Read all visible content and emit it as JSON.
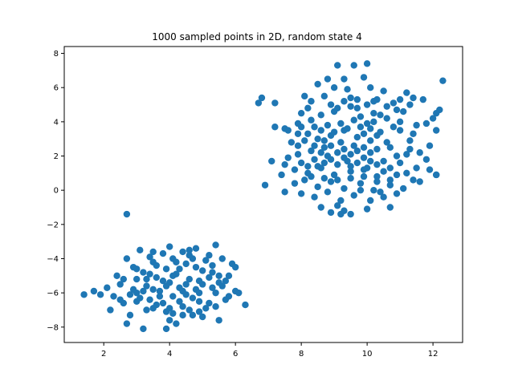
{
  "chart_data": {
    "type": "scatter",
    "title": "1000 sampled points in 2D, random state 4",
    "xlabel": "",
    "ylabel": "",
    "xlim": [
      0.8,
      12.9
    ],
    "ylim": [
      -8.9,
      8.4
    ],
    "xticks": [
      2,
      4,
      6,
      8,
      10,
      12
    ],
    "yticks": [
      -8,
      -6,
      -4,
      -2,
      0,
      2,
      4,
      6,
      8
    ],
    "xtick_labels": [
      "2",
      "4",
      "6",
      "8",
      "10",
      "12"
    ],
    "ytick_labels": [
      "−8",
      "−6",
      "−4",
      "−2",
      "0",
      "2",
      "4",
      "6",
      "8"
    ],
    "grid": false,
    "legend": "none",
    "marker_color": "#1f77b4",
    "series": [
      {
        "points": [
          [
            9.1,
            7.3
          ],
          [
            9.6,
            7.3
          ],
          [
            10.0,
            7.4
          ],
          [
            8.8,
            6.5
          ],
          [
            9.3,
            6.5
          ],
          [
            9.9,
            6.6
          ],
          [
            8.5,
            6.2
          ],
          [
            9.0,
            6.0
          ],
          [
            9.4,
            5.9
          ],
          [
            10.1,
            6.0
          ],
          [
            10.5,
            5.8
          ],
          [
            11.2,
            5.7
          ],
          [
            12.3,
            6.4
          ],
          [
            11.4,
            5.4
          ],
          [
            11.7,
            5.3
          ],
          [
            6.7,
            5.1
          ],
          [
            6.8,
            5.4
          ],
          [
            7.2,
            5.1
          ],
          [
            8.1,
            5.5
          ],
          [
            8.3,
            5.2
          ],
          [
            8.7,
            5.5
          ],
          [
            9.5,
            5.4
          ],
          [
            10.3,
            5.3
          ],
          [
            10.8,
            5.1
          ],
          [
            7.2,
            3.7
          ],
          [
            7.5,
            3.6
          ],
          [
            7.9,
            3.9
          ],
          [
            8.3,
            4.1
          ],
          [
            8.6,
            4.4
          ],
          [
            9.0,
            4.6
          ],
          [
            9.7,
            4.8
          ],
          [
            10.2,
            4.5
          ],
          [
            10.6,
            4.2
          ],
          [
            11.1,
            4.6
          ],
          [
            12.2,
            4.7
          ],
          [
            12.1,
            4.5
          ],
          [
            8.2,
            3.3
          ],
          [
            8.5,
            3.0
          ],
          [
            8.9,
            3.2
          ],
          [
            9.3,
            3.5
          ],
          [
            9.8,
            3.7
          ],
          [
            10.4,
            3.4
          ],
          [
            11.0,
            3.5
          ],
          [
            11.4,
            3.3
          ],
          [
            12.1,
            3.5
          ],
          [
            7.9,
            2.6
          ],
          [
            8.3,
            2.3
          ],
          [
            8.7,
            2.5
          ],
          [
            9.2,
            2.8
          ],
          [
            9.6,
            2.6
          ],
          [
            10.1,
            2.9
          ],
          [
            10.7,
            2.5
          ],
          [
            11.3,
            2.4
          ],
          [
            7.6,
            1.9
          ],
          [
            8.0,
            1.6
          ],
          [
            8.4,
            1.8
          ],
          [
            8.8,
            2.0
          ],
          [
            9.4,
            1.7
          ],
          [
            9.9,
            1.9
          ],
          [
            10.5,
            1.7
          ],
          [
            11.0,
            1.6
          ],
          [
            11.5,
            1.3
          ],
          [
            11.9,
            1.2
          ],
          [
            12.1,
            0.9
          ],
          [
            7.5,
            1.5
          ],
          [
            7.8,
            1.2
          ],
          [
            8.2,
            1.0
          ],
          [
            8.6,
            1.3
          ],
          [
            9.0,
            0.9
          ],
          [
            9.5,
            1.1
          ],
          [
            10.0,
            1.3
          ],
          [
            10.3,
            0.8
          ],
          [
            10.9,
            0.9
          ],
          [
            11.4,
            0.6
          ],
          [
            12.1,
            0.9
          ],
          [
            7.1,
            1.7
          ],
          [
            7.4,
            0.9
          ],
          [
            7.8,
            0.4
          ],
          [
            8.1,
            0.6
          ],
          [
            8.5,
            0.2
          ],
          [
            8.9,
            0.5
          ],
          [
            9.3,
            0.1
          ],
          [
            9.8,
            0.4
          ],
          [
            10.2,
            0.0
          ],
          [
            10.7,
            0.3
          ],
          [
            11.1,
            0.1
          ],
          [
            11.6,
            0.5
          ],
          [
            6.9,
            0.3
          ],
          [
            7.5,
            -0.1
          ],
          [
            8.0,
            -0.2
          ],
          [
            8.4,
            -0.4
          ],
          [
            8.8,
            -0.1
          ],
          [
            9.2,
            -0.6
          ],
          [
            9.6,
            -0.3
          ],
          [
            10.1,
            -0.6
          ],
          [
            10.5,
            -0.4
          ],
          [
            10.9,
            -0.2
          ],
          [
            8.6,
            -1.0
          ],
          [
            9.1,
            -0.9
          ],
          [
            9.3,
            -1.2
          ],
          [
            9.5,
            -1.4
          ],
          [
            10.0,
            -1.1
          ],
          [
            10.7,
            -1.0
          ],
          [
            9.2,
            -1.4
          ],
          [
            8.9,
            -1.3
          ],
          [
            8.4,
            3.7
          ],
          [
            8.6,
            3.5
          ],
          [
            8.8,
            3.8
          ],
          [
            9.0,
            3.4
          ],
          [
            9.2,
            3.9
          ],
          [
            9.4,
            3.6
          ],
          [
            9.6,
            4.1
          ],
          [
            9.8,
            4.3
          ],
          [
            10.0,
            3.9
          ],
          [
            10.2,
            4.0
          ],
          [
            10.4,
            4.4
          ],
          [
            9.7,
            3.1
          ],
          [
            9.9,
            3.3
          ],
          [
            10.1,
            3.6
          ],
          [
            10.3,
            3.2
          ],
          [
            8.7,
            2.9
          ],
          [
            8.9,
            2.6
          ],
          [
            9.1,
            2.2
          ],
          [
            9.3,
            2.4
          ],
          [
            9.5,
            2.1
          ],
          [
            9.7,
            2.3
          ],
          [
            9.9,
            2.5
          ],
          [
            10.1,
            2.2
          ],
          [
            10.3,
            2.4
          ],
          [
            8.5,
            1.4
          ],
          [
            8.7,
            1.6
          ],
          [
            8.9,
            1.8
          ],
          [
            9.1,
            1.5
          ],
          [
            9.3,
            1.9
          ],
          [
            9.5,
            1.4
          ],
          [
            9.7,
            1.6
          ],
          [
            9.9,
            1.2
          ],
          [
            10.1,
            1.7
          ],
          [
            10.3,
            1.5
          ],
          [
            10.5,
            1.1
          ],
          [
            8.3,
            0.8
          ],
          [
            8.7,
            0.7
          ],
          [
            9.1,
            0.6
          ],
          [
            9.5,
            0.7
          ],
          [
            9.9,
            0.8
          ],
          [
            10.3,
            0.5
          ],
          [
            10.7,
            0.6
          ],
          [
            8.9,
            5.0
          ],
          [
            9.1,
            4.8
          ],
          [
            9.3,
            5.2
          ],
          [
            9.5,
            4.9
          ],
          [
            9.7,
            5.3
          ],
          [
            10.0,
            5.0
          ],
          [
            10.2,
            5.2
          ],
          [
            10.6,
            4.9
          ],
          [
            8.2,
            4.8
          ],
          [
            8.0,
            4.5
          ],
          [
            7.9,
            3.3
          ],
          [
            11.3,
            2.9
          ],
          [
            11.6,
            2.2
          ],
          [
            11.8,
            1.8
          ],
          [
            11.2,
            2.1
          ],
          [
            11.5,
            3.8
          ],
          [
            11.0,
            4.0
          ],
          [
            10.8,
            3.7
          ],
          [
            10.6,
            2.8
          ],
          [
            10.9,
            2.0
          ],
          [
            10.7,
            1.3
          ],
          [
            11.2,
            1.0
          ],
          [
            7.7,
            2.8
          ],
          [
            7.9,
            2.1
          ],
          [
            8.1,
            2.9
          ],
          [
            8.2,
            1.4
          ],
          [
            8.4,
            2.6
          ],
          [
            8.6,
            2.2
          ],
          [
            9.8,
            0.0
          ],
          [
            10.4,
            -0.1
          ],
          [
            11.3,
            5.0
          ],
          [
            11.0,
            5.3
          ],
          [
            10.9,
            4.7
          ],
          [
            8.0,
            3.7
          ],
          [
            7.6,
            3.5
          ],
          [
            12.0,
            4.2
          ],
          [
            11.8,
            3.9
          ],
          [
            11.9,
            2.6
          ],
          [
            2.7,
            -1.4
          ],
          [
            1.4,
            -6.1
          ],
          [
            1.7,
            -5.9
          ],
          [
            1.9,
            -6.1
          ],
          [
            2.1,
            -5.7
          ],
          [
            2.3,
            -6.2
          ],
          [
            2.2,
            -7.0
          ],
          [
            2.4,
            -5.0
          ],
          [
            2.5,
            -5.5
          ],
          [
            2.6,
            -6.6
          ],
          [
            2.7,
            -4.0
          ],
          [
            2.7,
            -7.8
          ],
          [
            2.8,
            -7.3
          ],
          [
            2.9,
            -4.5
          ],
          [
            3.0,
            -5.2
          ],
          [
            3.0,
            -6.0
          ],
          [
            3.1,
            -3.5
          ],
          [
            3.2,
            -8.1
          ],
          [
            3.2,
            -4.8
          ],
          [
            3.3,
            -5.6
          ],
          [
            3.4,
            -6.4
          ],
          [
            3.4,
            -3.9
          ],
          [
            3.5,
            -4.2
          ],
          [
            3.5,
            -6.9
          ],
          [
            3.6,
            -5.1
          ],
          [
            3.7,
            -5.9
          ],
          [
            3.8,
            -3.7
          ],
          [
            3.8,
            -6.6
          ],
          [
            3.9,
            -4.6
          ],
          [
            3.9,
            -7.1
          ],
          [
            4.0,
            -3.3
          ],
          [
            4.0,
            -5.4
          ],
          [
            4.1,
            -6.2
          ],
          [
            4.1,
            -4.0
          ],
          [
            4.2,
            -7.8
          ],
          [
            4.2,
            -4.9
          ],
          [
            4.3,
            -5.7
          ],
          [
            4.4,
            -6.8
          ],
          [
            4.4,
            -3.6
          ],
          [
            4.5,
            -4.3
          ],
          [
            4.5,
            -6.1
          ],
          [
            4.6,
            -5.2
          ],
          [
            4.7,
            -7.3
          ],
          [
            4.7,
            -4.0
          ],
          [
            4.8,
            -5.8
          ],
          [
            4.8,
            -3.4
          ],
          [
            4.9,
            -6.5
          ],
          [
            5.0,
            -4.7
          ],
          [
            5.0,
            -5.5
          ],
          [
            5.1,
            -6.9
          ],
          [
            5.2,
            -3.8
          ],
          [
            5.2,
            -5.1
          ],
          [
            5.3,
            -4.4
          ],
          [
            5.4,
            -3.2
          ],
          [
            5.4,
            -6.0
          ],
          [
            5.5,
            -7.6
          ],
          [
            5.5,
            -5.4
          ],
          [
            5.6,
            -4.0
          ],
          [
            5.7,
            -6.4
          ],
          [
            5.8,
            -5.0
          ],
          [
            5.9,
            -4.3
          ],
          [
            6.0,
            -5.9
          ],
          [
            6.0,
            -4.5
          ],
          [
            6.3,
            -6.7
          ],
          [
            3.9,
            -8.1
          ],
          [
            4.0,
            -7.6
          ],
          [
            4.4,
            -7.3
          ],
          [
            4.9,
            -7.1
          ],
          [
            5.4,
            -6.8
          ],
          [
            3.3,
            -7.0
          ],
          [
            3.0,
            -6.5
          ],
          [
            2.8,
            -6.1
          ],
          [
            2.6,
            -5.2
          ],
          [
            3.6,
            -4.4
          ],
          [
            4.3,
            -4.6
          ],
          [
            4.6,
            -3.8
          ],
          [
            5.1,
            -4.1
          ],
          [
            5.6,
            -5.6
          ],
          [
            5.8,
            -6.2
          ],
          [
            3.5,
            -5.8
          ],
          [
            3.8,
            -5.3
          ],
          [
            4.1,
            -5.0
          ],
          [
            4.3,
            -6.5
          ],
          [
            4.7,
            -6.3
          ],
          [
            5.2,
            -6.6
          ],
          [
            3.2,
            -5.9
          ],
          [
            3.4,
            -4.9
          ],
          [
            4.0,
            -6.9
          ],
          [
            4.5,
            -5.5
          ],
          [
            4.9,
            -5.3
          ],
          [
            5.3,
            -5.7
          ],
          [
            3.7,
            -6.2
          ],
          [
            4.2,
            -4.2
          ],
          [
            4.8,
            -4.5
          ],
          [
            3.1,
            -6.3
          ],
          [
            2.9,
            -5.8
          ],
          [
            3.5,
            -3.6
          ],
          [
            4.6,
            -3.5
          ],
          [
            5.5,
            -5.0
          ],
          [
            6.1,
            -6.0
          ],
          [
            2.5,
            -6.4
          ],
          [
            3.0,
            -4.6
          ],
          [
            3.3,
            -5.2
          ],
          [
            3.9,
            -5.6
          ],
          [
            4.4,
            -5.9
          ],
          [
            4.9,
            -6.0
          ],
          [
            5.3,
            -4.8
          ],
          [
            5.7,
            -5.3
          ],
          [
            3.6,
            -6.7
          ],
          [
            4.1,
            -7.2
          ],
          [
            4.6,
            -7.0
          ],
          [
            5.0,
            -7.4
          ]
        ]
      }
    ]
  }
}
